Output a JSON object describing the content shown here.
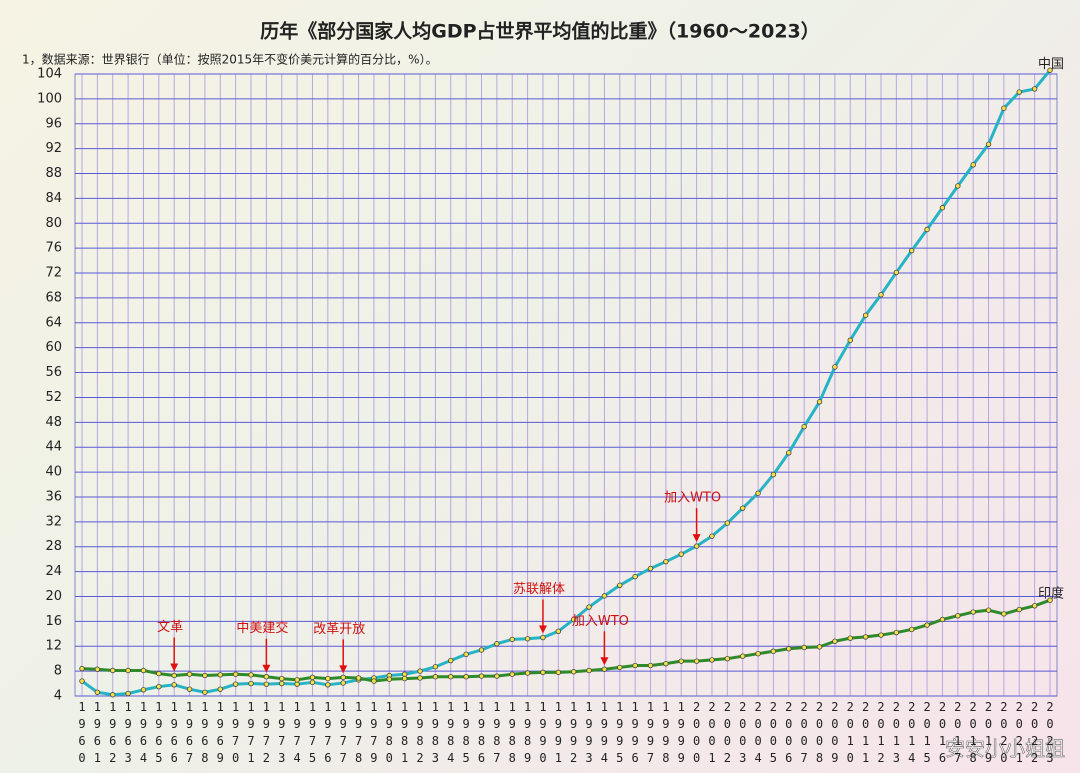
{
  "chart_data": {
    "type": "line",
    "title": "历年《部分国家人均GDP占世界平均值的比重》（1960～2023）",
    "subtitle": "1，数据来源：世界银行（单位：按照2015年不变价美元计算的百分比，%）。",
    "categories": [
      "1960",
      "1961",
      "1962",
      "1963",
      "1964",
      "1965",
      "1966",
      "1967",
      "1968",
      "1969",
      "1970",
      "1971",
      "1972",
      "1973",
      "1974",
      "1975",
      "1976",
      "1977",
      "1978",
      "1979",
      "1980",
      "1981",
      "1982",
      "1983",
      "1984",
      "1985",
      "1986",
      "1987",
      "1988",
      "1989",
      "1990",
      "1991",
      "1992",
      "1993",
      "1994",
      "1995",
      "1996",
      "1997",
      "1998",
      "1999",
      "2000",
      "2001",
      "2002",
      "2003",
      "2004",
      "2005",
      "2006",
      "2007",
      "2008",
      "2009",
      "2010",
      "2011",
      "2012",
      "2013",
      "2014",
      "2015",
      "2016",
      "2017",
      "2018",
      "2019",
      "2020",
      "2021",
      "2022",
      "2023"
    ],
    "series": [
      {
        "name": "中国",
        "color": "#27b3c6",
        "values": [
          6.4,
          4.6,
          4.2,
          4.4,
          5.0,
          5.5,
          5.8,
          5.1,
          4.6,
          5.1,
          5.9,
          6.0,
          5.9,
          6.0,
          5.9,
          6.2,
          5.8,
          6.1,
          6.6,
          6.9,
          7.3,
          7.5,
          8.0,
          8.7,
          9.7,
          10.7,
          11.4,
          12.4,
          13.1,
          13.2,
          13.4,
          14.4,
          16.3,
          18.3,
          20.1,
          21.8,
          23.2,
          24.5,
          25.6,
          26.8,
          28.1,
          29.7,
          31.8,
          34.2,
          36.6,
          39.6,
          43.1,
          47.3,
          51.3,
          56.9,
          61.2,
          65.2,
          68.5,
          72.1,
          75.6,
          79.0,
          82.5,
          86.0,
          89.4,
          92.7,
          98.5,
          101.1,
          101.6,
          104.6
        ]
      },
      {
        "name": "印度",
        "color": "#2e8a2a",
        "values": [
          8.4,
          8.3,
          8.1,
          8.1,
          8.1,
          7.6,
          7.3,
          7.5,
          7.3,
          7.4,
          7.5,
          7.4,
          7.1,
          6.8,
          6.6,
          7.0,
          6.8,
          7.0,
          6.9,
          6.4,
          6.7,
          6.8,
          6.9,
          7.1,
          7.1,
          7.1,
          7.2,
          7.2,
          7.5,
          7.7,
          7.8,
          7.8,
          7.9,
          8.1,
          8.3,
          8.6,
          8.9,
          8.9,
          9.2,
          9.6,
          9.6,
          9.8,
          10.0,
          10.4,
          10.8,
          11.2,
          11.6,
          11.8,
          11.9,
          12.8,
          13.3,
          13.5,
          13.8,
          14.2,
          14.7,
          15.4,
          16.3,
          16.9,
          17.5,
          17.8,
          17.2,
          17.9,
          18.5,
          19.4
        ]
      }
    ],
    "ylim": [
      4,
      104
    ],
    "yticks": [
      4,
      8,
      12,
      16,
      20,
      24,
      28,
      32,
      36,
      40,
      44,
      48,
      52,
      56,
      60,
      64,
      68,
      72,
      76,
      80,
      84,
      88,
      92,
      96,
      100,
      104
    ],
    "grid": true,
    "annotations": [
      {
        "text": "文革",
        "x": "1966",
        "series": "印度"
      },
      {
        "text": "中美建交",
        "x": "1972",
        "series": "印度"
      },
      {
        "text": "改革开放",
        "x": "1977",
        "series": "印度"
      },
      {
        "text": "苏联解体",
        "x": "1990",
        "series": "中国"
      },
      {
        "text": "加入WTO",
        "x": "2000",
        "series": "中国"
      },
      {
        "text": "加入WTO",
        "x": "1994",
        "series": "印度"
      }
    ],
    "watermark": "安安小小姐姐"
  }
}
